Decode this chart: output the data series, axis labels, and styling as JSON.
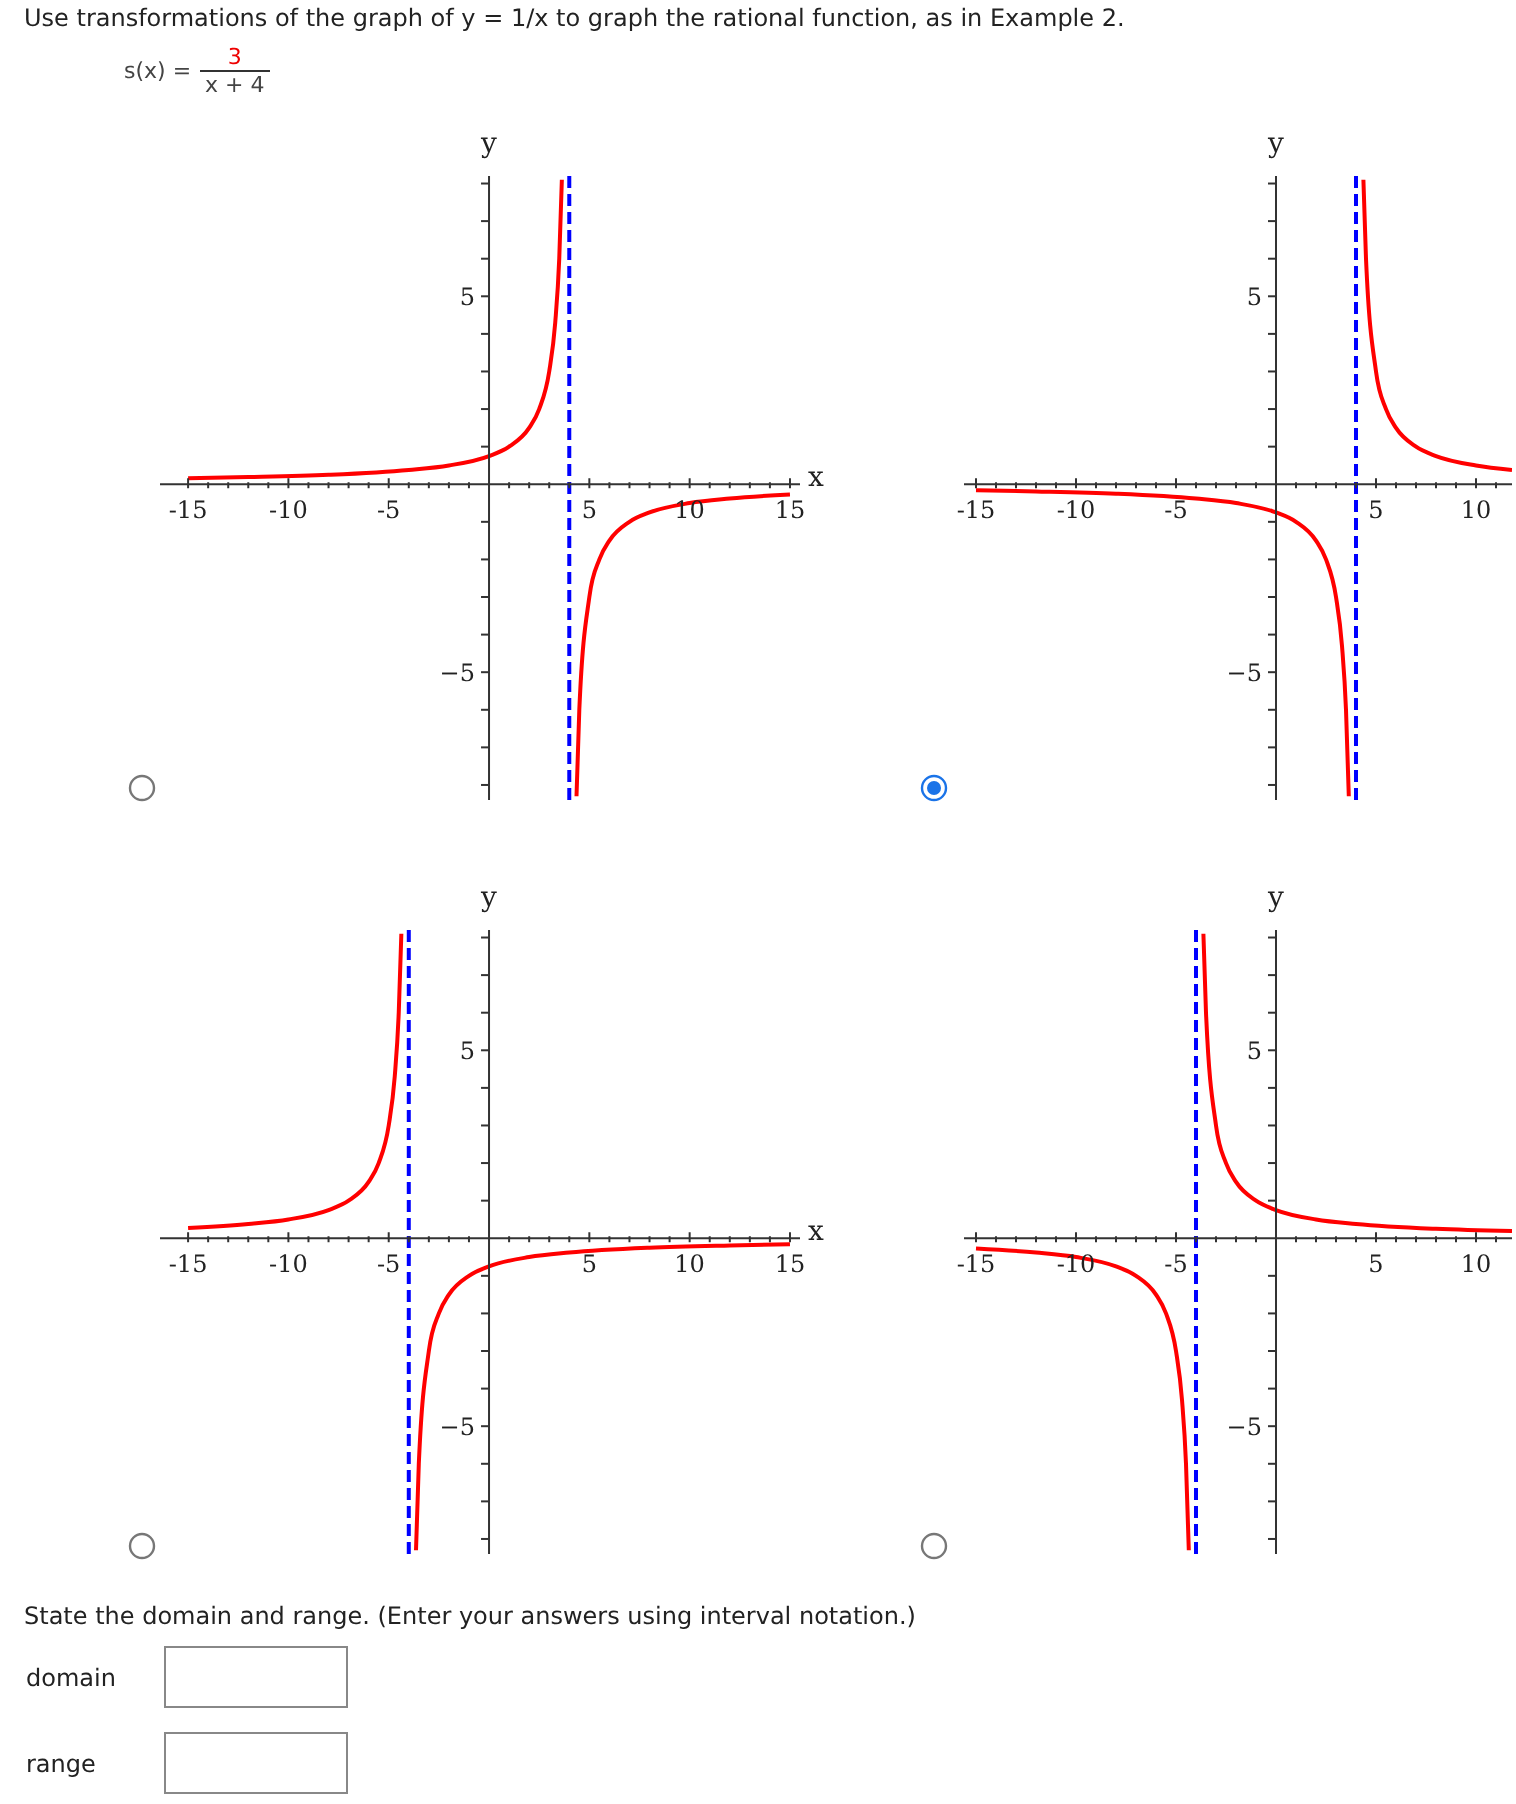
{
  "chart_data": [
    {
      "type": "line",
      "title": "Use transformations of the graph of  y = 1/x  to graph the rational function, as in Example 2.",
      "annotations": [
        "s(x) =",
        "3",
        "x + 4",
        "State the domain and range. (Enter your answers using interval notation.)",
        "domain",
        "range"
      ],
      "xlabel": "x",
      "ylabel": "y",
      "xlim": [
        -16.4,
        15.5
      ],
      "ylim": [
        -8.4,
        8.2
      ],
      "xticks": [
        -15,
        {
          "value": -14,
          "label": null
        },
        {
          "value": -13,
          "label": null
        },
        {
          "value": -12,
          "label": null
        },
        {
          "value": -11,
          "label": null
        },
        -10,
        {
          "value": -9,
          "label": null
        },
        {
          "value": -8,
          "label": null
        },
        {
          "value": -7,
          "label": null
        },
        {
          "value": -6,
          "label": null
        },
        -5,
        {
          "value": -4,
          "label": null
        },
        {
          "value": -3,
          "label": null
        },
        {
          "value": -2,
          "label": null
        },
        {
          "value": -1,
          "label": null
        },
        {
          "value": 1,
          "label": null
        },
        {
          "value": 2,
          "label": null
        },
        {
          "value": 3,
          "label": null
        },
        {
          "value": 4,
          "label": null
        },
        5,
        {
          "value": 6,
          "label": null
        },
        {
          "value": 7,
          "label": null
        },
        {
          "value": 8,
          "label": null
        },
        {
          "value": 9,
          "label": null
        },
        10,
        {
          "value": 11,
          "label": null
        },
        {
          "value": 12,
          "label": null
        },
        {
          "value": 13,
          "label": null
        },
        {
          "value": 14,
          "label": null
        },
        15
      ],
      "yticks": [
        {
          "value": -8,
          "label": null
        },
        {
          "value": -7,
          "label": null
        },
        {
          "value": -6,
          "label": null
        },
        {
          "value": -5,
          "label": "−5"
        },
        {
          "value": -4,
          "label": null
        },
        {
          "value": -3,
          "label": null
        },
        {
          "value": -2,
          "label": null
        },
        {
          "value": -1,
          "label": null
        },
        {
          "value": 1,
          "label": null
        },
        {
          "value": 2,
          "label": null
        },
        {
          "value": 3,
          "label": null
        },
        {
          "value": 4,
          "label": null
        },
        {
          "value": 5,
          "label": "5"
        },
        {
          "value": 6,
          "label": null
        },
        {
          "value": 7,
          "label": null
        },
        {
          "value": 8,
          "label": null
        }
      ],
      "series": [
        {
          "color": "#ff0000",
          "x": [
            -15,
            -12,
            -8,
            -4,
            -2,
            0,
            1,
            2,
            2.5,
            3,
            3.3,
            3.5,
            3.63
          ],
          "values": [
            0.16,
            0.19,
            0.25,
            0.38,
            0.5,
            0.75,
            1,
            1.5,
            2,
            3,
            4.3,
            6,
            8.1
          ]
        },
        {
          "color": "#ff0000",
          "x": [
            4.36,
            4.5,
            5,
            5.5,
            6,
            7,
            8,
            10,
            12,
            15
          ],
          "values": [
            -8.3,
            -6,
            -3,
            -2,
            -1.5,
            -1,
            -0.75,
            -0.5,
            -0.38,
            -0.27
          ]
        }
      ],
      "ref_lines": [
        {
          "axis": "x",
          "value": 4,
          "color": "#0000ff",
          "line_style": "dashed"
        }
      ]
    },
    {
      "type": "line",
      "ylabel": "y",
      "xlim": [
        -15.6,
        11.8
      ],
      "ylim": [
        -8.4,
        8.2
      ],
      "xticks": [
        -15,
        {
          "value": -14,
          "label": null
        },
        {
          "value": -13,
          "label": null
        },
        {
          "value": -12,
          "label": null
        },
        {
          "value": -11,
          "label": null
        },
        -10,
        {
          "value": -9,
          "label": null
        },
        {
          "value": -8,
          "label": null
        },
        {
          "value": -7,
          "label": null
        },
        {
          "value": -6,
          "label": null
        },
        -5,
        {
          "value": -4,
          "label": null
        },
        {
          "value": -3,
          "label": null
        },
        {
          "value": -2,
          "label": null
        },
        {
          "value": -1,
          "label": null
        },
        {
          "value": 1,
          "label": null
        },
        {
          "value": 2,
          "label": null
        },
        {
          "value": 3,
          "label": null
        },
        {
          "value": 4,
          "label": null
        },
        5,
        {
          "value": 6,
          "label": null
        },
        {
          "value": 7,
          "label": null
        },
        {
          "value": 8,
          "label": null
        },
        {
          "value": 9,
          "label": null
        },
        10,
        {
          "value": 11,
          "label": null
        }
      ],
      "yticks": [
        {
          "value": -8,
          "label": null
        },
        {
          "value": -7,
          "label": null
        },
        {
          "value": -6,
          "label": null
        },
        {
          "value": -5,
          "label": "−5"
        },
        {
          "value": -4,
          "label": null
        },
        {
          "value": -3,
          "label": null
        },
        {
          "value": -2,
          "label": null
        },
        {
          "value": -1,
          "label": null
        },
        {
          "value": 1,
          "label": null
        },
        {
          "value": 2,
          "label": null
        },
        {
          "value": 3,
          "label": null
        },
        {
          "value": 4,
          "label": null
        },
        {
          "value": 5,
          "label": "5"
        },
        {
          "value": 6,
          "label": null
        },
        {
          "value": 7,
          "label": null
        },
        {
          "value": 8,
          "label": null
        }
      ],
      "series": [
        {
          "color": "#ff0000",
          "x": [
            -15,
            -12,
            -8,
            -4,
            -2,
            0,
            1,
            2,
            2.5,
            3,
            3.3,
            3.5,
            3.64
          ],
          "values": [
            -0.16,
            -0.19,
            -0.25,
            -0.38,
            -0.5,
            -0.75,
            -1,
            -1.5,
            -2,
            -3,
            -4.3,
            -6,
            -8.3
          ]
        },
        {
          "color": "#ff0000",
          "x": [
            4.37,
            4.5,
            5,
            5.5,
            6,
            7,
            8,
            10,
            11.8
          ],
          "values": [
            8.1,
            6,
            3,
            2,
            1.5,
            1,
            0.75,
            0.5,
            0.38
          ]
        }
      ],
      "ref_lines": [
        {
          "axis": "x",
          "value": 4,
          "color": "#0000ff",
          "line_style": "dashed"
        }
      ]
    },
    {
      "type": "line",
      "xlabel": "x",
      "ylabel": "y",
      "xlim": [
        -16.4,
        15.5
      ],
      "ylim": [
        -8.4,
        8.2
      ],
      "xticks": [
        -15,
        {
          "value": -14,
          "label": null
        },
        {
          "value": -13,
          "label": null
        },
        {
          "value": -12,
          "label": null
        },
        {
          "value": -11,
          "label": null
        },
        -10,
        {
          "value": -9,
          "label": null
        },
        {
          "value": -8,
          "label": null
        },
        {
          "value": -7,
          "label": null
        },
        {
          "value": -6,
          "label": null
        },
        -5,
        {
          "value": -4,
          "label": null
        },
        {
          "value": -3,
          "label": null
        },
        {
          "value": -2,
          "label": null
        },
        {
          "value": -1,
          "label": null
        },
        {
          "value": 1,
          "label": null
        },
        {
          "value": 2,
          "label": null
        },
        {
          "value": 3,
          "label": null
        },
        {
          "value": 4,
          "label": null
        },
        5,
        {
          "value": 6,
          "label": null
        },
        {
          "value": 7,
          "label": null
        },
        {
          "value": 8,
          "label": null
        },
        {
          "value": 9,
          "label": null
        },
        10,
        {
          "value": 11,
          "label": null
        },
        {
          "value": 12,
          "label": null
        },
        {
          "value": 13,
          "label": null
        },
        {
          "value": 14,
          "label": null
        },
        15
      ],
      "yticks": [
        {
          "value": -8,
          "label": null
        },
        {
          "value": -7,
          "label": null
        },
        {
          "value": -6,
          "label": null
        },
        {
          "value": -5,
          "label": "−5"
        },
        {
          "value": -4,
          "label": null
        },
        {
          "value": -3,
          "label": null
        },
        {
          "value": -2,
          "label": null
        },
        {
          "value": -1,
          "label": null
        },
        {
          "value": 1,
          "label": null
        },
        {
          "value": 2,
          "label": null
        },
        {
          "value": 3,
          "label": null
        },
        {
          "value": 4,
          "label": null
        },
        {
          "value": 5,
          "label": "5"
        },
        {
          "value": 6,
          "label": null
        },
        {
          "value": 7,
          "label": null
        },
        {
          "value": 8,
          "label": null
        }
      ],
      "series": [
        {
          "color": "#ff0000",
          "x": [
            -15,
            -12,
            -10,
            -8,
            -7,
            -6,
            -5.5,
            -5,
            -4.7,
            -4.5,
            -4.37
          ],
          "values": [
            0.27,
            0.38,
            0.5,
            0.75,
            1,
            1.5,
            2,
            3,
            4.3,
            6,
            8.1
          ]
        },
        {
          "color": "#ff0000",
          "x": [
            -3.64,
            -3.5,
            -3,
            -2.5,
            -2,
            -1,
            0,
            2,
            4,
            8,
            12,
            15
          ],
          "values": [
            -8.3,
            -6,
            -3,
            -2,
            -1.5,
            -1,
            -0.75,
            -0.5,
            -0.38,
            -0.25,
            -0.19,
            -0.16
          ]
        }
      ],
      "ref_lines": [
        {
          "axis": "x",
          "value": -4,
          "color": "#0000ff",
          "line_style": "dashed"
        }
      ]
    },
    {
      "type": "line",
      "ylabel": "y",
      "xlim": [
        -15.6,
        11.8
      ],
      "ylim": [
        -8.4,
        8.2
      ],
      "xticks": [
        -15,
        {
          "value": -14,
          "label": null
        },
        {
          "value": -13,
          "label": null
        },
        {
          "value": -12,
          "label": null
        },
        {
          "value": -11,
          "label": null
        },
        -10,
        {
          "value": -9,
          "label": null
        },
        {
          "value": -8,
          "label": null
        },
        {
          "value": -7,
          "label": null
        },
        {
          "value": -6,
          "label": null
        },
        -5,
        {
          "value": -4,
          "label": null
        },
        {
          "value": -3,
          "label": null
        },
        {
          "value": -2,
          "label": null
        },
        {
          "value": -1,
          "label": null
        },
        {
          "value": 1,
          "label": null
        },
        {
          "value": 2,
          "label": null
        },
        {
          "value": 3,
          "label": null
        },
        {
          "value": 4,
          "label": null
        },
        5,
        {
          "value": 6,
          "label": null
        },
        {
          "value": 7,
          "label": null
        },
        {
          "value": 8,
          "label": null
        },
        {
          "value": 9,
          "label": null
        },
        10,
        {
          "value": 11,
          "label": null
        }
      ],
      "yticks": [
        {
          "value": -8,
          "label": null
        },
        {
          "value": -7,
          "label": null
        },
        {
          "value": -6,
          "label": null
        },
        {
          "value": -5,
          "label": "−5"
        },
        {
          "value": -4,
          "label": null
        },
        {
          "value": -3,
          "label": null
        },
        {
          "value": -2,
          "label": null
        },
        {
          "value": -1,
          "label": null
        },
        {
          "value": 1,
          "label": null
        },
        {
          "value": 2,
          "label": null
        },
        {
          "value": 3,
          "label": null
        },
        {
          "value": 4,
          "label": null
        },
        {
          "value": 5,
          "label": "5"
        },
        {
          "value": 6,
          "label": null
        },
        {
          "value": 7,
          "label": null
        },
        {
          "value": 8,
          "label": null
        }
      ],
      "series": [
        {
          "color": "#ff0000",
          "x": [
            -15,
            -12,
            -10,
            -8,
            -7,
            -6,
            -5.5,
            -5,
            -4.7,
            -4.5,
            -4.36
          ],
          "values": [
            -0.27,
            -0.38,
            -0.5,
            -0.75,
            -1,
            -1.5,
            -2,
            -3,
            -4.3,
            -6,
            -8.3
          ]
        },
        {
          "color": "#ff0000",
          "x": [
            -3.63,
            -3.5,
            -3,
            -2.5,
            -2,
            -1,
            0,
            2,
            4,
            8,
            11.8
          ],
          "values": [
            8.1,
            6,
            3,
            2,
            1.5,
            1,
            0.75,
            0.5,
            0.38,
            0.25,
            0.19
          ]
        }
      ],
      "ref_lines": [
        {
          "axis": "x",
          "value": -4,
          "color": "#0000ff",
          "line_style": "dashed"
        }
      ]
    }
  ]
}
